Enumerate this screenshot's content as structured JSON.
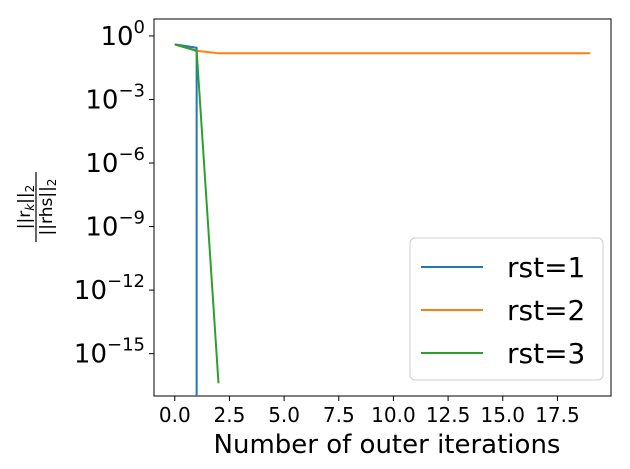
{
  "chart_data": {
    "type": "line",
    "xlabel": "Number of outer iterations",
    "ylabel": {
      "numerator": "||r",
      "numerator_sub": "k",
      "numerator_tail": "||",
      "numerator_norm": "2",
      "denominator": "||rhs||",
      "denominator_norm": "2"
    },
    "yscale": "log",
    "xlim": [
      -0.95,
      19.95
    ],
    "ylim_log10": [
      -17.0,
      0.8
    ],
    "xticks": [
      0.0,
      2.5,
      5.0,
      7.5,
      10.0,
      12.5,
      15.0,
      17.5
    ],
    "xtick_labels": [
      "0.0",
      "2.5",
      "5.0",
      "7.5",
      "10.0",
      "12.5",
      "15.0",
      "17.5"
    ],
    "yticks_log10": [
      0,
      -3,
      -6,
      -9,
      -12,
      -15
    ],
    "ytick_base": "10",
    "ytick_exponents": [
      "0",
      "−3",
      "−6",
      "−9",
      "−12",
      "−15"
    ],
    "grid": false,
    "legend_position": "bottom-right",
    "series": [
      {
        "name": "rst=1",
        "color": "#1f77b4",
        "x": [
          0,
          1,
          1
        ],
        "log10_y": [
          -0.4,
          -0.56,
          -17.0
        ]
      },
      {
        "name": "rst=2",
        "color": "#ff7f0e",
        "x": [
          0,
          1,
          2,
          3,
          4,
          5,
          6,
          7,
          8,
          9,
          10,
          11,
          12,
          13,
          14,
          15,
          16,
          17,
          18,
          19
        ],
        "log10_y": [
          -0.4,
          -0.7,
          -0.82,
          -0.82,
          -0.82,
          -0.82,
          -0.82,
          -0.82,
          -0.82,
          -0.82,
          -0.82,
          -0.82,
          -0.82,
          -0.82,
          -0.82,
          -0.82,
          -0.82,
          -0.82,
          -0.82,
          -0.82
        ]
      },
      {
        "name": "rst=3",
        "color": "#2ca02c",
        "x": [
          0,
          1,
          2
        ],
        "log10_y": [
          -0.4,
          -0.7,
          -16.4
        ]
      }
    ]
  }
}
